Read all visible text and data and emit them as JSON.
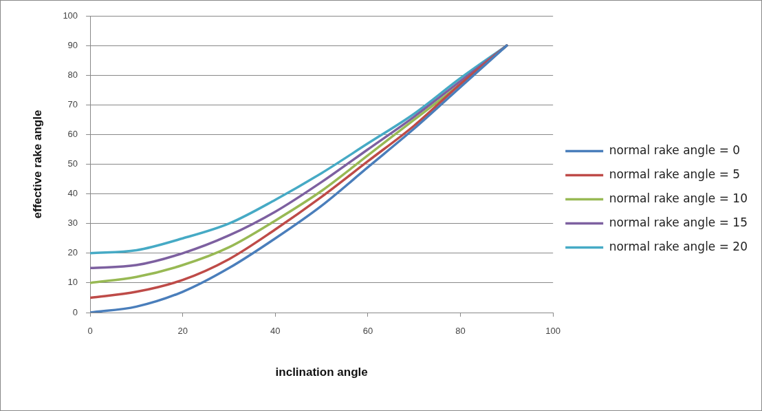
{
  "chart_data": {
    "type": "line",
    "xlabel": "inclination angle",
    "ylabel": "effective rake angle",
    "x": [
      0,
      10,
      20,
      30,
      40,
      50,
      60,
      70,
      80,
      90
    ],
    "series": [
      {
        "name": "normal rake angle = 0",
        "color": "#4a7ebb",
        "values": [
          0,
          2,
          7,
          15,
          25,
          36,
          49,
          62,
          76,
          90
        ]
      },
      {
        "name": "normal rake angle = 5",
        "color": "#be4b48",
        "values": [
          5,
          7,
          11,
          18,
          28,
          39,
          51,
          63,
          77,
          90
        ]
      },
      {
        "name": "normal rake angle = 10",
        "color": "#98b954",
        "values": [
          10,
          12,
          16,
          22,
          31,
          41,
          53,
          65,
          77,
          90
        ]
      },
      {
        "name": "normal rake angle = 15",
        "color": "#7d60a0",
        "values": [
          15,
          16,
          20,
          26,
          34,
          44,
          55,
          66,
          78,
          90
        ]
      },
      {
        "name": "normal rake angle = 20",
        "color": "#46aac5",
        "values": [
          20,
          21,
          25,
          30,
          38,
          47,
          57,
          67,
          79,
          90
        ]
      }
    ],
    "xlim": [
      0,
      100
    ],
    "xticks": [
      0,
      20,
      40,
      60,
      80,
      100
    ],
    "ylim": [
      0,
      100
    ],
    "yticks": [
      0,
      10,
      20,
      30,
      40,
      50,
      60,
      70,
      80,
      90,
      100
    ],
    "grid": "y",
    "legend": "right",
    "marker": "none",
    "line_style": "solid"
  }
}
